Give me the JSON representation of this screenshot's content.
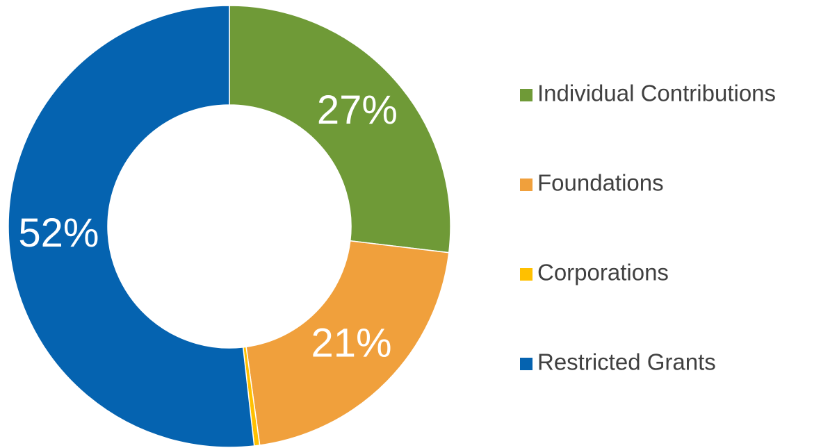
{
  "chart_data": {
    "type": "donut",
    "categories": [
      "Individual Contributions",
      "Foundations",
      "Corporations",
      "Restricted Grants"
    ],
    "values": [
      27,
      21,
      0.4,
      52
    ],
    "value_labels": [
      "27%",
      "21%",
      null,
      "52%"
    ],
    "colors": [
      "#6f9a37",
      "#f0a03c",
      "#ffc000",
      "#0563b0"
    ],
    "legend": "right"
  }
}
